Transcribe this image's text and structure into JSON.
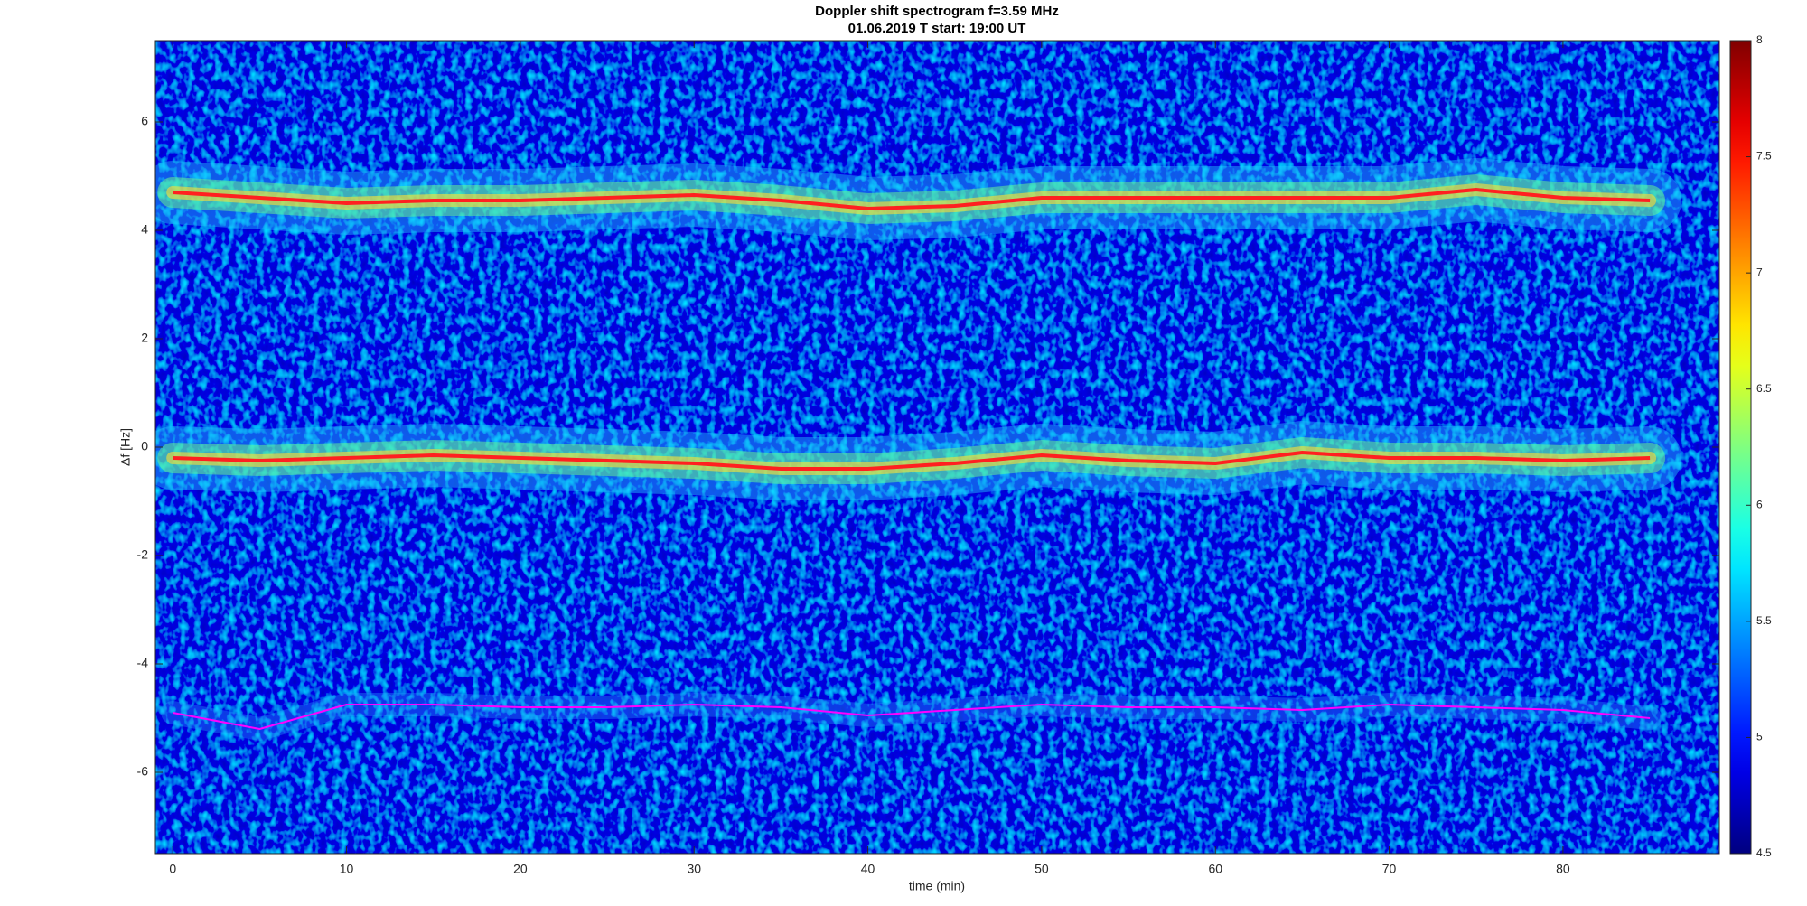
{
  "chart_data": {
    "type": "spectrogram",
    "title": "Doppler shift spectrogram f=3.59 MHz",
    "subtitle": "01.06.2019   T start: 19:00 UT",
    "x_label": "time (min)",
    "y_label": "Δf [Hz]",
    "xlim": [
      -1,
      89
    ],
    "xticks": [
      0,
      10,
      20,
      30,
      40,
      50,
      60,
      70,
      80
    ],
    "ylim": [
      -7.5,
      7.5
    ],
    "yticks": [
      -6,
      -4,
      -2,
      0,
      2,
      4,
      6
    ],
    "colormap": "jet",
    "clim": [
      4.5,
      8
    ],
    "cticks": [
      4.5,
      5,
      5.5,
      6,
      6.5,
      7,
      7.5,
      8
    ],
    "x": [
      0,
      5,
      10,
      15,
      20,
      25,
      30,
      35,
      40,
      45,
      50,
      55,
      60,
      65,
      70,
      75,
      80,
      85
    ],
    "series": [
      {
        "color": "#ff2020",
        "values": [
          4.7,
          4.6,
          4.5,
          4.55,
          4.55,
          4.6,
          4.65,
          4.55,
          4.4,
          4.45,
          4.6,
          4.6,
          4.6,
          4.6,
          4.6,
          4.75,
          4.6,
          4.55
        ]
      },
      {
        "color": "#ff2020",
        "values": [
          -0.2,
          -0.25,
          -0.2,
          -0.15,
          -0.2,
          -0.25,
          -0.3,
          -0.4,
          -0.4,
          -0.3,
          -0.15,
          -0.25,
          -0.3,
          -0.1,
          -0.2,
          -0.2,
          -0.25,
          -0.2
        ]
      },
      {
        "color": "#ff00ff",
        "values": [
          -4.9,
          -5.2,
          -4.75,
          -4.75,
          -4.8,
          -4.8,
          -4.75,
          -4.8,
          -4.95,
          -4.85,
          -4.75,
          -4.8,
          -4.8,
          -4.85,
          -4.75,
          -4.8,
          -4.85,
          -5.0
        ]
      }
    ]
  }
}
